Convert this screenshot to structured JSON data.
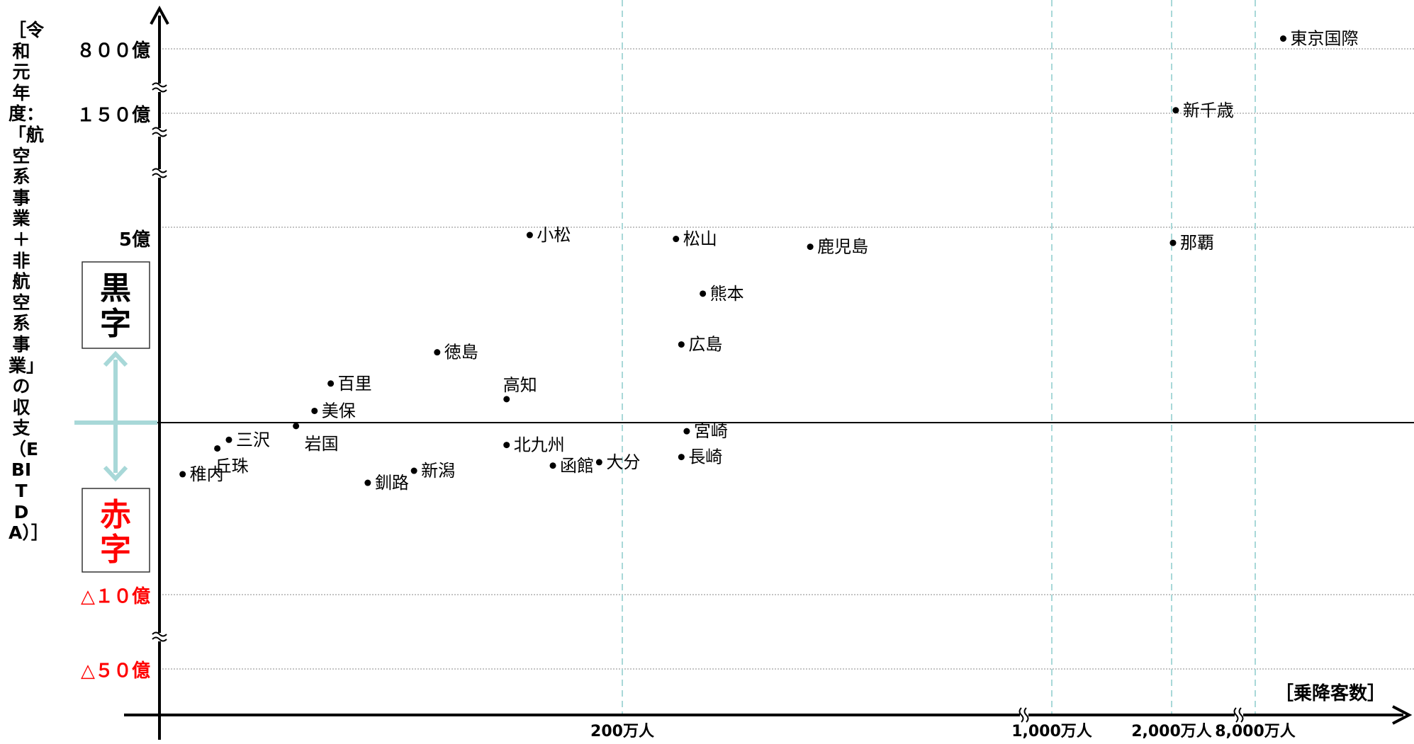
{
  "chart_data": {
    "type": "scatter",
    "y_title": "［令和元年度：「航空系事業＋非航空系事業」の収支（EBITDA）］",
    "x_title": "［乗降客数］",
    "x_scale": "broken-axis",
    "y_scale": "broken-axis",
    "x_ticks": [
      {
        "value": 2000000,
        "label": "200万人"
      },
      {
        "value": 10000000,
        "label": "1,000万人"
      },
      {
        "value": 20000000,
        "label": "2,000万人"
      },
      {
        "value": 80000000,
        "label": "8,000万人"
      }
    ],
    "y_ticks": [
      {
        "value": 80000000000,
        "label": "８００億",
        "color": "#000000"
      },
      {
        "value": 15000000000,
        "label": "１５０億",
        "color": "#000000"
      },
      {
        "value": 500000000,
        "label": "5億",
        "color": "#000000"
      },
      {
        "value": -1000000000,
        "label": "△１０億",
        "color": "#ff0000"
      },
      {
        "value": -5000000000,
        "label": "△５０億",
        "color": "#ff0000"
      }
    ],
    "y_ticks_gridline_at": [
      80000000000,
      15000000000,
      500000000,
      -1000000000,
      -5000000000
    ],
    "x_gridline_style": "dashed",
    "y_gridline_style": "dotted",
    "zero_line": "solid",
    "zone_labels": {
      "profit": {
        "text": "黒字",
        "color": "#000000"
      },
      "loss": {
        "text": "赤字",
        "color": "#ff0000"
      }
    },
    "accent_color": "#a8d8d8",
    "points": [
      {
        "label": "東京国際",
        "x": 85000000,
        "y": 85000000000
      },
      {
        "label": "新千歳",
        "x": 23000000,
        "y": 18000000000
      },
      {
        "label": "那覇",
        "x": 21000000,
        "y": 460000000
      },
      {
        "label": "小松",
        "x": 1600000,
        "y": 480000000
      },
      {
        "label": "松山",
        "x": 3000000,
        "y": 470000000
      },
      {
        "label": "鹿児島",
        "x": 5500000,
        "y": 450000000
      },
      {
        "label": "熊本",
        "x": 3500000,
        "y": 330000000
      },
      {
        "label": "広島",
        "x": 3100000,
        "y": 200000000
      },
      {
        "label": "徳島",
        "x": 1200000,
        "y": 180000000
      },
      {
        "label": "百里",
        "x": 740000,
        "y": 100000000
      },
      {
        "label": "高知",
        "x": 1500000,
        "y": 60000000
      },
      {
        "label": "美保",
        "x": 670000,
        "y": 30000000
      },
      {
        "label": "岩国",
        "x": 590000,
        "y": -20000000
      },
      {
        "label": "三沢",
        "x": 300000,
        "y": -100000000
      },
      {
        "label": "丘珠",
        "x": 250000,
        "y": -150000000
      },
      {
        "label": "北九州",
        "x": 1500000,
        "y": -130000000
      },
      {
        "label": "宮崎",
        "x": 3200000,
        "y": -50000000
      },
      {
        "label": "長崎",
        "x": 3100000,
        "y": -200000000
      },
      {
        "label": "大分",
        "x": 1900000,
        "y": -230000000
      },
      {
        "label": "函館",
        "x": 1700000,
        "y": -250000000
      },
      {
        "label": "新潟",
        "x": 1100000,
        "y": -280000000
      },
      {
        "label": "稚内",
        "x": 100000,
        "y": -300000000
      },
      {
        "label": "釧路",
        "x": 900000,
        "y": -350000000
      }
    ]
  }
}
